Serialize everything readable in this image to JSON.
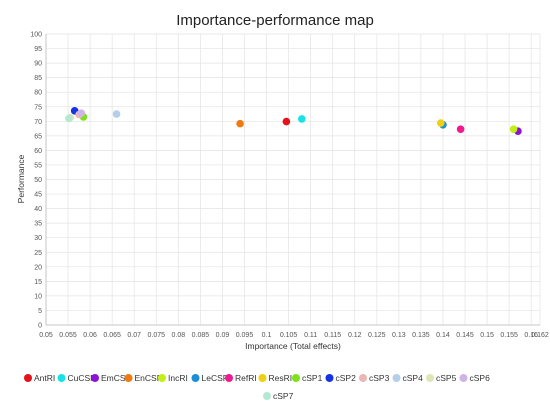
{
  "chart_data": {
    "type": "scatter",
    "title": "Importance-performance map",
    "xlabel": "Importance (Total effects)",
    "ylabel": "Performance",
    "xlim": [
      0.05,
      0.162
    ],
    "ylim": [
      0,
      100
    ],
    "x_ticks": [
      "0.05",
      "0.055",
      "0.06",
      "0.065",
      "0.07",
      "0.075",
      "0.08",
      "0.085",
      "0.09",
      "0.095",
      "0.1",
      "0.105",
      "0.11",
      "0.115",
      "0.12",
      "0.125",
      "0.13",
      "0.135",
      "0.14",
      "0.145",
      "0.15",
      "0.155",
      "0.16",
      "0.162"
    ],
    "y_ticks": [
      "0",
      "5",
      "10",
      "15",
      "20",
      "25",
      "30",
      "35",
      "40",
      "45",
      "50",
      "55",
      "60",
      "65",
      "70",
      "75",
      "80",
      "85",
      "90",
      "95",
      "100"
    ],
    "grid": true,
    "legend_position": "bottom",
    "series": [
      {
        "name": "AntRI",
        "color": "#e8101a",
        "x": 0.1045,
        "y": 69.9
      },
      {
        "name": "CuCSR",
        "color": "#19e2e6",
        "x": 0.108,
        "y": 70.8
      },
      {
        "name": "EmCSR",
        "color": "#8c12d6",
        "x": 0.157,
        "y": 66.6
      },
      {
        "name": "EnCSR",
        "color": "#f07a10",
        "x": 0.094,
        "y": 69.2
      },
      {
        "name": "IncRI",
        "color": "#c2ef16",
        "x": 0.156,
        "y": 67.3
      },
      {
        "name": "LeCSR",
        "color": "#1a8fd8",
        "x": 0.14,
        "y": 68.8
      },
      {
        "name": "RefRI",
        "color": "#ef1a8f",
        "x": 0.144,
        "y": 67.3
      },
      {
        "name": "ResRI",
        "color": "#f0cf10",
        "x": 0.1395,
        "y": 69.4
      },
      {
        "name": "cSP1",
        "color": "#7ee21a",
        "x": 0.0585,
        "y": 71.5
      },
      {
        "name": "cSP2",
        "color": "#1632e3",
        "x": 0.0565,
        "y": 73.6
      },
      {
        "name": "cSP3",
        "color": "#eab7b3",
        "x": 0.0575,
        "y": 72.3
      },
      {
        "name": "cSP4",
        "color": "#b4cfea",
        "x": 0.066,
        "y": 72.5
      },
      {
        "name": "cSP5",
        "color": "#dde6b4",
        "x": 0.0555,
        "y": 71.3
      },
      {
        "name": "cSP6",
        "color": "#cfb4e8",
        "x": 0.058,
        "y": 72.8
      },
      {
        "name": "cSP7",
        "color": "#b4e8d1",
        "x": 0.0552,
        "y": 71.0
      }
    ]
  }
}
